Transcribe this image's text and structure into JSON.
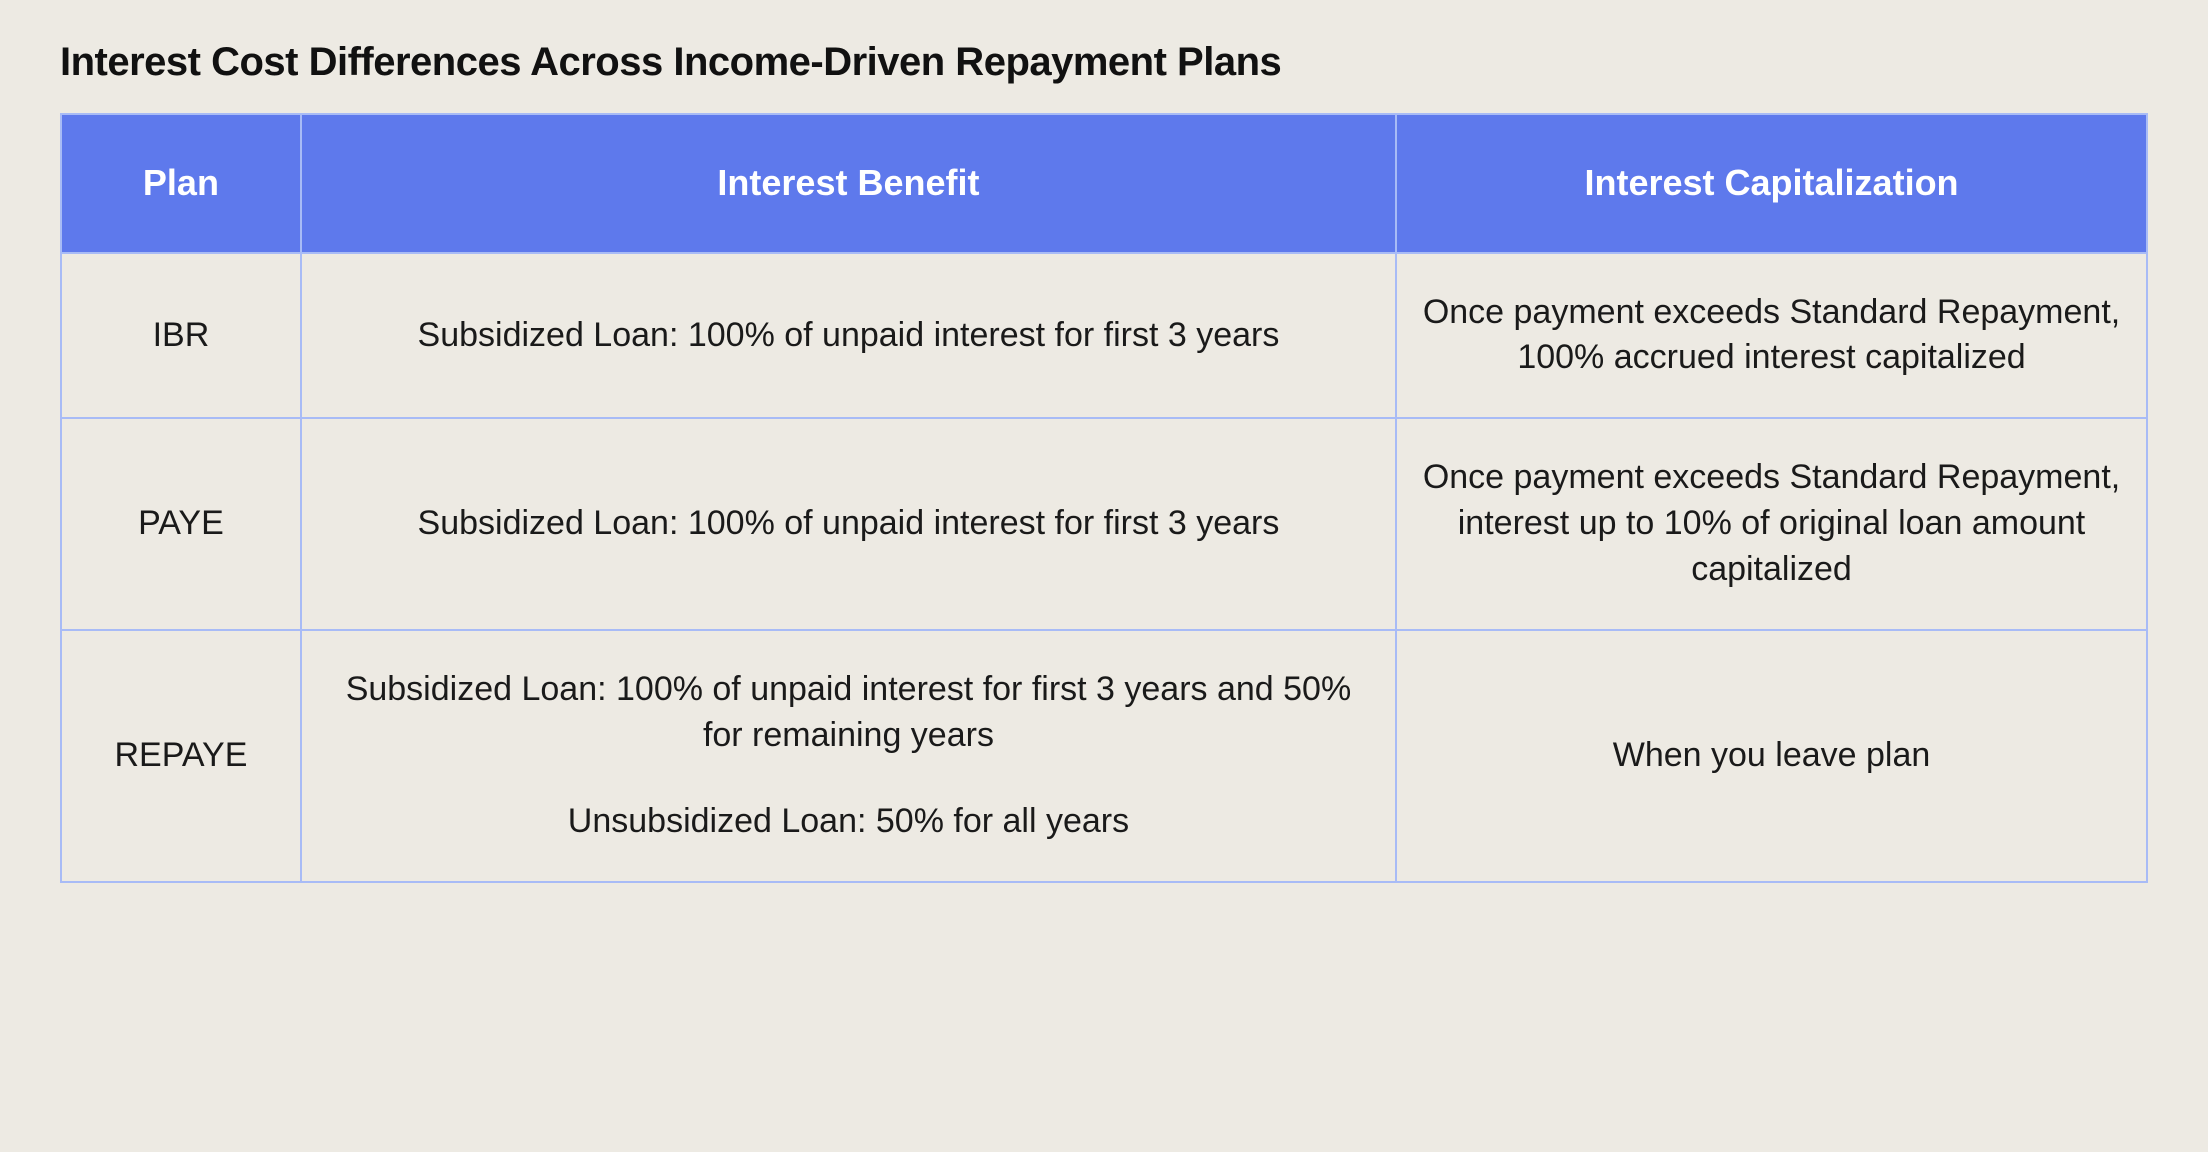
{
  "title": "Interest Cost Differences Across Income-Driven Repayment Plans",
  "table": {
    "type": "table",
    "background_color": "#edeae3",
    "border_color": "#a8bbf6",
    "header_bg": "#5e79ec",
    "header_text_color": "#ffffff",
    "header_fontsize_pt": 27,
    "body_fontsize_pt": 26,
    "title_fontsize_pt": 30,
    "column_widths_pct": [
      11.5,
      52.5,
      36
    ],
    "columns": [
      "Plan",
      "Interest Benefit",
      "Interest Capitalization"
    ],
    "rows": [
      {
        "plan": "IBR",
        "benefit": "Subsidized Loan: 100% of unpaid interest for first 3 years",
        "benefit2": "",
        "cap": "Once payment exceeds Standard Repayment, 100% accrued interest capitalized"
      },
      {
        "plan": "PAYE",
        "benefit": "Subsidized Loan: 100% of unpaid interest for first 3 years",
        "benefit2": "",
        "cap": "Once payment exceeds Standard Repayment, interest up to 10% of original loan amount capitalized"
      },
      {
        "plan": "REPAYE",
        "benefit": "Subsidized Loan: 100% of unpaid interest for first 3 years and 50% for remaining years",
        "benefit2": "Unsubsidized Loan: 50% for all years",
        "cap": "When you leave plan"
      }
    ]
  }
}
